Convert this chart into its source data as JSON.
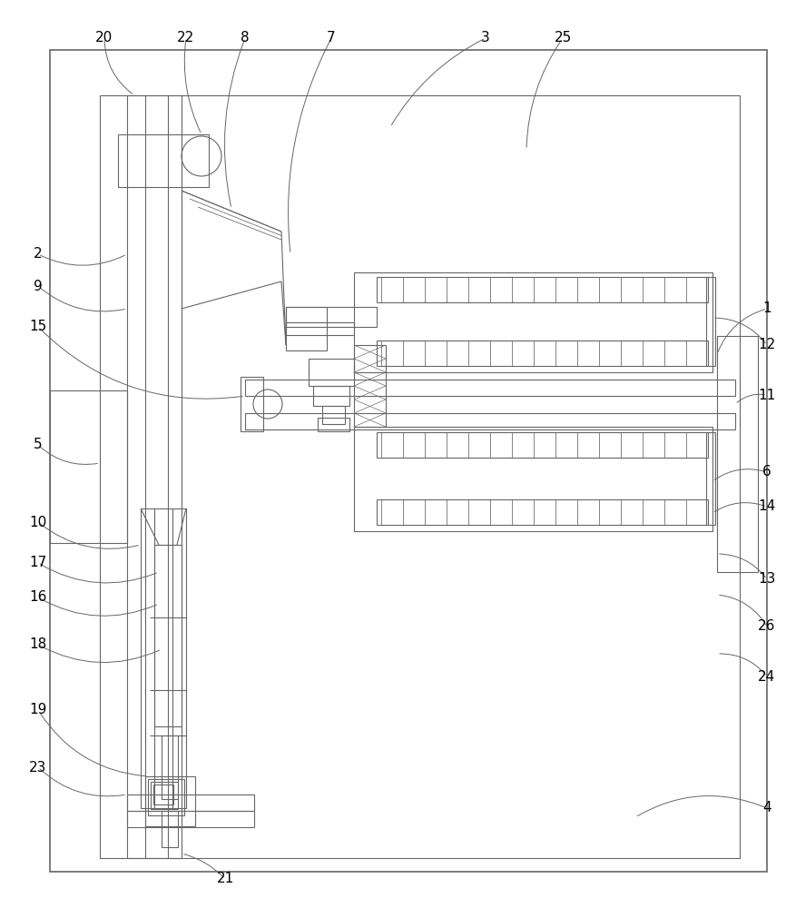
{
  "bg_color": "#ffffff",
  "lc": "#666666",
  "lw": 0.8,
  "lw2": 1.2,
  "fig_w": 8.77,
  "fig_h": 10.0,
  "dpi": 100
}
